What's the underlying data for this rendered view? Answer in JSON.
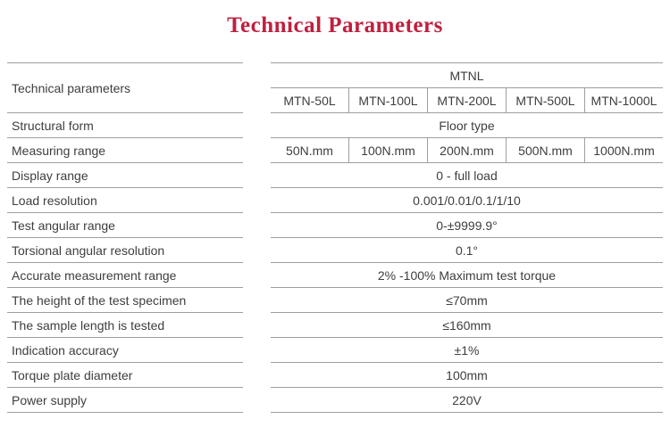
{
  "page": {
    "title": "Technical Parameters"
  },
  "colors": {
    "title-color": "#c01f3e",
    "text-color": "#3e3e3e",
    "line-color": "#9e9e9e"
  },
  "table": {
    "corner_label": "Technical parameters",
    "header": {
      "series": "MTNL",
      "models": [
        "MTN-50L",
        "MTN-100L",
        "MTN-200L",
        "MTN-500L",
        "MTN-1000L"
      ]
    },
    "rows": [
      {
        "label": "Structural form",
        "value": "Floor type"
      },
      {
        "label": "Measuring range",
        "values": [
          "50N.mm",
          "100N.mm",
          "200N.mm",
          "500N.mm",
          "1000N.mm"
        ]
      },
      {
        "label": "Display range",
        "value": "0 - full load"
      },
      {
        "label": "Load resolution",
        "value": "0.001/0.01/0.1/1/10"
      },
      {
        "label": "Test angular range",
        "value": "0-±9999.9°"
      },
      {
        "label": "Torsional angular resolution",
        "value": "0.1°"
      },
      {
        "label": "Accurate measurement range",
        "value": "2% -100% Maximum test torque"
      },
      {
        "label": "The height of the test specimen",
        "value": "≤70mm"
      },
      {
        "label": "The sample length is tested",
        "value": "≤160mm"
      },
      {
        "label": "Indication accuracy",
        "value": "±1%"
      },
      {
        "label": "Torque plate diameter",
        "value": "100mm"
      },
      {
        "label": "Power supply",
        "value": "220V"
      }
    ]
  }
}
